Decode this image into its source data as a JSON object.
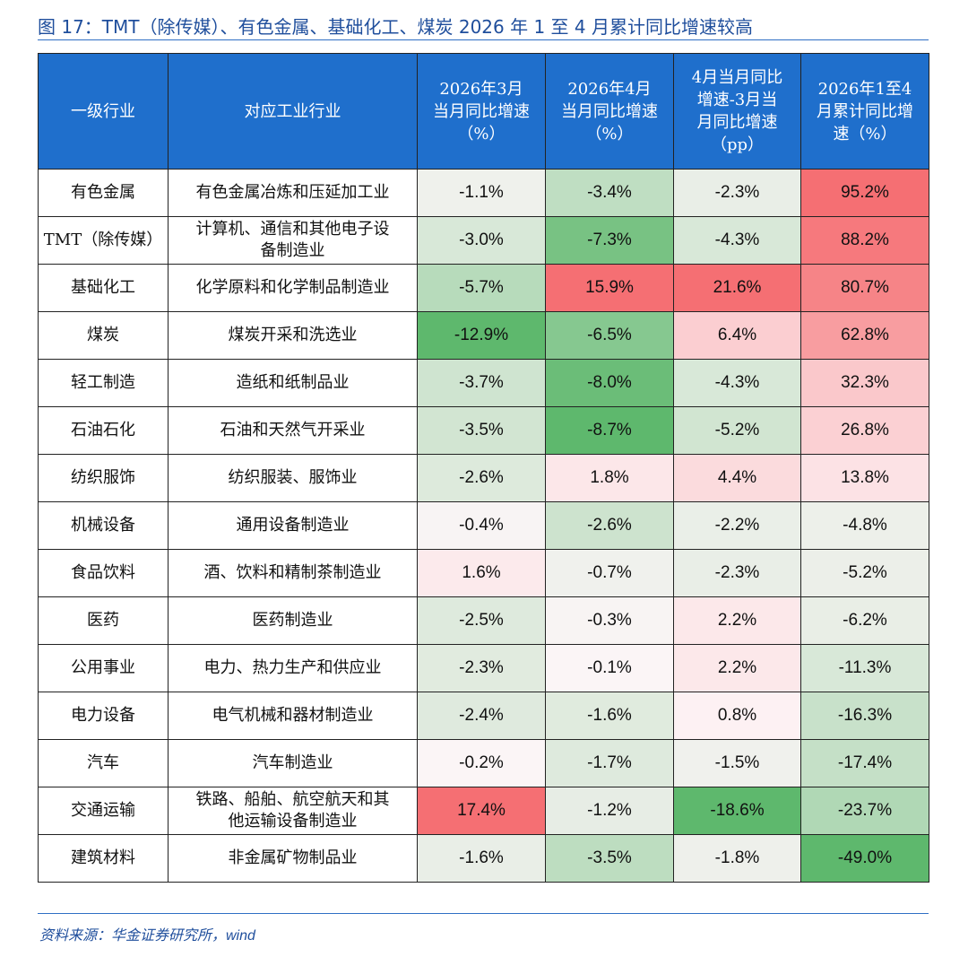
{
  "title": "图 17：TMT（除传媒）、有色金属、基础化工、煤炭 2026 年 1 至 4 月累计同比增速较高",
  "headers": [
    "一级行业",
    "对应工业行业",
    "2026年3月\n当月同比增速\n（%）",
    "2026年4月\n当月同比增速\n（%）",
    "4月当月同比\n增速-3月当\n月同比增速\n（pp）",
    "2026年1至4\n月累计同比增\n速（%）"
  ],
  "rows": [
    {
      "sector": "有色金属",
      "industry": "有色金属冶炼和压延加工业",
      "mar": "-1.1%",
      "apr": "-3.4%",
      "diff": "-2.3%",
      "ytd": "95.2%"
    },
    {
      "sector": "TMT（除传媒）",
      "industry": "计算机、通信和其他电子设\n备制造业",
      "mar": "-3.0%",
      "apr": "-7.3%",
      "diff": "-4.3%",
      "ytd": "88.2%"
    },
    {
      "sector": "基础化工",
      "industry": "化学原料和化学制品制造业",
      "mar": "-5.7%",
      "apr": "15.9%",
      "diff": "21.6%",
      "ytd": "80.7%"
    },
    {
      "sector": "煤炭",
      "industry": "煤炭开采和洗选业",
      "mar": "-12.9%",
      "apr": "-6.5%",
      "diff": "6.4%",
      "ytd": "62.8%"
    },
    {
      "sector": "轻工制造",
      "industry": "造纸和纸制品业",
      "mar": "-3.7%",
      "apr": "-8.0%",
      "diff": "-4.3%",
      "ytd": "32.3%"
    },
    {
      "sector": "石油石化",
      "industry": "石油和天然气开采业",
      "mar": "-3.5%",
      "apr": "-8.7%",
      "diff": "-5.2%",
      "ytd": "26.8%"
    },
    {
      "sector": "纺织服饰",
      "industry": "纺织服装、服饰业",
      "mar": "-2.6%",
      "apr": "1.8%",
      "diff": "4.4%",
      "ytd": "13.8%"
    },
    {
      "sector": "机械设备",
      "industry": "通用设备制造业",
      "mar": "-0.4%",
      "apr": "-2.6%",
      "diff": "-2.2%",
      "ytd": "-4.8%"
    },
    {
      "sector": "食品饮料",
      "industry": "酒、饮料和精制茶制造业",
      "mar": "1.6%",
      "apr": "-0.7%",
      "diff": "-2.3%",
      "ytd": "-5.2%"
    },
    {
      "sector": "医药",
      "industry": "医药制造业",
      "mar": "-2.5%",
      "apr": "-0.3%",
      "diff": "2.2%",
      "ytd": "-6.2%"
    },
    {
      "sector": "公用事业",
      "industry": "电力、热力生产和供应业",
      "mar": "-2.3%",
      "apr": "-0.1%",
      "diff": "2.2%",
      "ytd": "-11.3%"
    },
    {
      "sector": "电力设备",
      "industry": "电气机械和器材制造业",
      "mar": "-2.4%",
      "apr": "-1.6%",
      "diff": "0.8%",
      "ytd": "-16.3%"
    },
    {
      "sector": "汽车",
      "industry": "汽车制造业",
      "mar": "-0.2%",
      "apr": "-1.7%",
      "diff": "-1.5%",
      "ytd": "-17.4%"
    },
    {
      "sector": "交通运输",
      "industry": "铁路、船舶、航空航天和其\n他运输设备制造业",
      "mar": "17.4%",
      "apr": "-1.2%",
      "diff": "-18.6%",
      "ytd": "-23.7%"
    },
    {
      "sector": "建筑材料",
      "industry": "非金属矿物制品业",
      "mar": "-1.6%",
      "apr": "-3.5%",
      "diff": "-1.8%",
      "ytd": "-49.0%"
    }
  ],
  "source": "资料来源：华金证券研究所，wind",
  "colors": {
    "header_bg": "#1f6fcc",
    "title_text": "#1f4e9c",
    "positive_max": "#f56f73",
    "negative_max": "#5eb86d"
  }
}
